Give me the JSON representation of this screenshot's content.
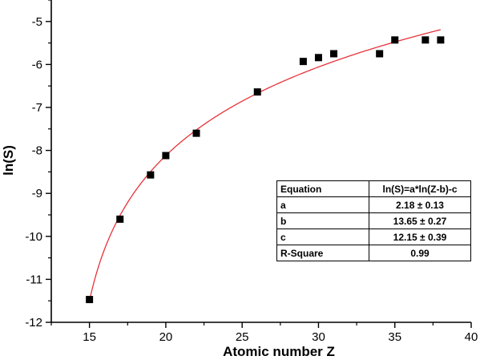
{
  "chart_data": {
    "type": "scatter",
    "title": "",
    "xlabel": "Atomic number Z",
    "ylabel": "ln(S)",
    "xlim": [
      12.5,
      40
    ],
    "ylim": [
      -12,
      -4.5
    ],
    "xticks": [
      15,
      20,
      25,
      30,
      35,
      40
    ],
    "yticks": [
      -12,
      -11,
      -10,
      -9,
      -8,
      -7,
      -6,
      -5
    ],
    "grid": false,
    "series": [
      {
        "type": "scatter",
        "marker": "square",
        "color": "#000000",
        "x": [
          15,
          17,
          19,
          20,
          22,
          26,
          29,
          30,
          31,
          34,
          35,
          37,
          38
        ],
        "y": [
          -11.47,
          -9.6,
          -8.57,
          -8.12,
          -7.6,
          -6.64,
          -5.93,
          -5.84,
          -5.75,
          -5.75,
          -5.43,
          -5.43,
          -5.43
        ]
      },
      {
        "type": "line",
        "color": "#e8333a",
        "fit": {
          "equation": "ln(S)=a*ln(Z-b)-c",
          "a": 2.18,
          "b": 13.65,
          "c": 12.15
        },
        "x_range": [
          15,
          38
        ]
      }
    ],
    "fit_table": {
      "header": [
        "Equation",
        "ln(S)=a*ln(Z-b)-c"
      ],
      "rows": [
        [
          "a",
          "2.18 ± 0.13"
        ],
        [
          "b",
          "13.65 ± 0.27"
        ],
        [
          "c",
          "12.15 ± 0.39"
        ],
        [
          "R-Square",
          "0.99"
        ]
      ]
    }
  }
}
